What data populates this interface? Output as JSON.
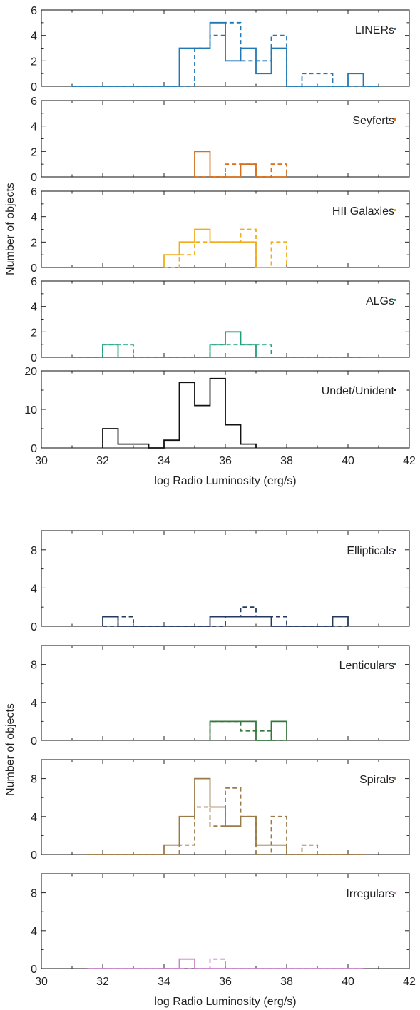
{
  "chart_data": [
    {
      "figure": "activity-classes",
      "type": "histogram",
      "xlabel": "log Radio Luminosity (erg/s)",
      "ylabel": "Number of objects",
      "x_range": [
        30,
        42
      ],
      "x_ticks": [
        "30",
        "32",
        "34",
        "36",
        "38",
        "40",
        "42"
      ],
      "bin_width": 0.5,
      "panels": [
        {
          "label": "LINERs",
          "color": "#2178b4",
          "ylim": [
            0,
            6
          ],
          "y_ticks": [
            "0",
            "2",
            "4",
            "6"
          ],
          "solid": {
            "x_start": 31.0,
            "counts": [
              0,
              0,
              0,
              0,
              0,
              0,
              0,
              3,
              3,
              5,
              2,
              3,
              1,
              3,
              0,
              0,
              0,
              0,
              1,
              0
            ]
          },
          "dashed": {
            "x_start": 31.0,
            "counts": [
              0,
              0,
              0,
              0,
              0,
              0,
              0,
              0,
              3,
              4,
              5,
              2,
              2,
              4,
              0,
              1,
              1,
              0,
              0,
              0
            ]
          }
        },
        {
          "label": "Seyferts",
          "color": "#d66f1e",
          "ylim": [
            0,
            6
          ],
          "y_ticks": [
            "0",
            "2",
            "4",
            "6"
          ],
          "solid": {
            "x_start": 35.0,
            "counts": [
              2,
              0,
              0,
              1,
              0,
              0
            ]
          },
          "dashed": {
            "x_start": 35.0,
            "counts": [
              0,
              0,
              1,
              1,
              0,
              1
            ]
          }
        },
        {
          "label": "HII Galaxies",
          "color": "#f2ab1d",
          "ylim": [
            0,
            6
          ],
          "y_ticks": [
            "0",
            "2",
            "4",
            "6"
          ],
          "solid": {
            "x_start": 34.0,
            "counts": [
              1,
              2,
              3,
              2,
              2,
              2,
              0,
              0
            ]
          },
          "dashed": {
            "x_start": 34.0,
            "counts": [
              0,
              1,
              2,
              2,
              2,
              3,
              0,
              2
            ]
          }
        },
        {
          "label": "ALGs",
          "color": "#1d9f7c",
          "ylim": [
            0,
            6
          ],
          "y_ticks": [
            "0",
            "2",
            "4",
            "6"
          ],
          "solid": {
            "x_start": 31.0,
            "counts": [
              0,
              0,
              1,
              0,
              0,
              0,
              0,
              0,
              0,
              1,
              2,
              1,
              0,
              0,
              0,
              0,
              0,
              0,
              0
            ]
          },
          "dashed": {
            "x_start": 31.0,
            "counts": [
              0,
              0,
              1,
              1,
              0,
              0,
              0,
              0,
              0,
              1,
              1,
              1,
              1,
              0,
              0,
              0,
              0,
              0,
              0
            ]
          }
        },
        {
          "label": "Undet/Unident",
          "color": "#111111",
          "ylim": [
            0,
            20
          ],
          "y_ticks": [
            "0",
            "10",
            "20"
          ],
          "solid": {
            "x_start": 32.0,
            "counts": [
              5,
              1,
              1,
              0,
              2,
              17,
              11,
              18,
              6,
              1
            ]
          }
        }
      ]
    },
    {
      "figure": "morphology-classes",
      "type": "histogram",
      "xlabel": "log Radio Luminosity (erg/s)",
      "ylabel": "Number of objects",
      "x_range": [
        30,
        42
      ],
      "x_ticks": [
        "30",
        "32",
        "34",
        "36",
        "38",
        "40",
        "42"
      ],
      "bin_width": 0.5,
      "panels": [
        {
          "label": "Ellipticals",
          "color": "#25385f",
          "ylim": [
            0,
            10
          ],
          "y_ticks": [
            "0",
            "4",
            "8"
          ],
          "solid": {
            "x_start": 32.0,
            "counts": [
              1,
              0,
              0,
              0,
              0,
              0,
              0,
              1,
              1,
              1,
              1,
              0,
              0,
              0,
              0,
              1
            ]
          },
          "dashed": {
            "x_start": 32.0,
            "counts": [
              0,
              1,
              0,
              0,
              0,
              0,
              0,
              0,
              1,
              2,
              1,
              1,
              0,
              0,
              0,
              0
            ]
          }
        },
        {
          "label": "Lenticulars",
          "color": "#36763e",
          "ylim": [
            0,
            10
          ],
          "y_ticks": [
            "0",
            "4",
            "8"
          ],
          "solid": {
            "x_start": 35.5,
            "counts": [
              2,
              2,
              2,
              0,
              2
            ]
          },
          "dashed": {
            "x_start": 35.5,
            "counts": [
              2,
              2,
              1,
              1,
              0
            ]
          }
        },
        {
          "label": "Spirals",
          "color": "#9a7a48",
          "ylim": [
            0,
            10
          ],
          "y_ticks": [
            "0",
            "4",
            "8"
          ],
          "solid": {
            "x_start": 31.5,
            "counts": [
              0,
              0,
              0,
              0,
              0,
              1,
              4,
              8,
              5,
              3,
              4,
              1,
              1,
              0,
              0,
              0,
              0,
              0
            ]
          },
          "dashed": {
            "x_start": 31.5,
            "counts": [
              0,
              0,
              0,
              0,
              0,
              0,
              1,
              5,
              3,
              7,
              4,
              0,
              4,
              0,
              1,
              0,
              0,
              0
            ]
          }
        },
        {
          "label": "Irregulars",
          "color": "#c883c9",
          "ylim": [
            0,
            10
          ],
          "y_ticks": [
            "0",
            "4",
            "8"
          ],
          "solid": {
            "x_start": 31.5,
            "counts": [
              0,
              0,
              0,
              0,
              0,
              0,
              1,
              0,
              0,
              0,
              0,
              0,
              0,
              0,
              0,
              0,
              0,
              0
            ]
          },
          "dashed": {
            "x_start": 31.5,
            "counts": [
              0,
              0,
              0,
              0,
              0,
              0,
              0,
              0,
              1,
              0,
              0,
              0,
              0,
              0,
              0,
              0,
              0,
              0
            ]
          }
        }
      ]
    }
  ]
}
